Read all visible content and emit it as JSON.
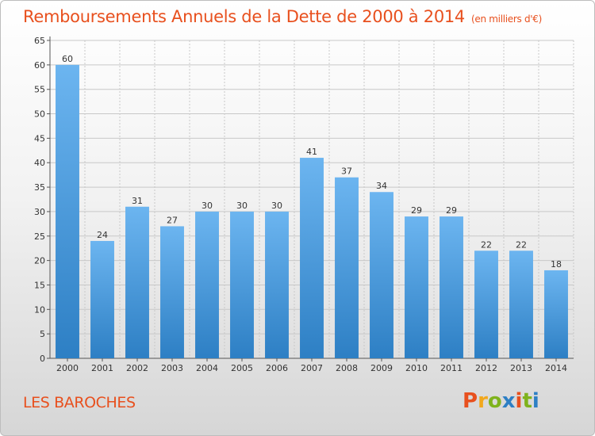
{
  "header": {
    "title": "Remboursements Annuels de la Dette de 2000 à 2014",
    "unit": "(en milliers d'€)"
  },
  "footer": {
    "place": "LES BAROCHES",
    "logo": "Proxiti"
  },
  "colors": {
    "accent": "#e8501e",
    "bar_top": "#6cb5f0",
    "bar_bottom": "#2d7fc4",
    "grid": "#c8c8c8",
    "logo_letters": [
      "#e8501e",
      "#f2a81d",
      "#7fb31d",
      "#2d7fc4",
      "#e8501e",
      "#7fb31d",
      "#2d7fc4"
    ]
  },
  "chart_data": {
    "type": "bar",
    "title": "Remboursements Annuels de la Dette de 2000 à 2014",
    "subtitle": "(en milliers d'€)",
    "categories": [
      "2000",
      "2001",
      "2002",
      "2003",
      "2004",
      "2005",
      "2006",
      "2007",
      "2008",
      "2009",
      "2010",
      "2011",
      "2012",
      "2013",
      "2014"
    ],
    "values": [
      60,
      24,
      31,
      27,
      30,
      30,
      30,
      41,
      37,
      34,
      29,
      29,
      22,
      22,
      18
    ],
    "ylim": [
      0,
      65
    ],
    "yticks": [
      0,
      5,
      10,
      15,
      20,
      25,
      30,
      35,
      40,
      45,
      50,
      55,
      60,
      65
    ],
    "grid": true,
    "legend": "none",
    "xlabel": "",
    "ylabel": ""
  }
}
